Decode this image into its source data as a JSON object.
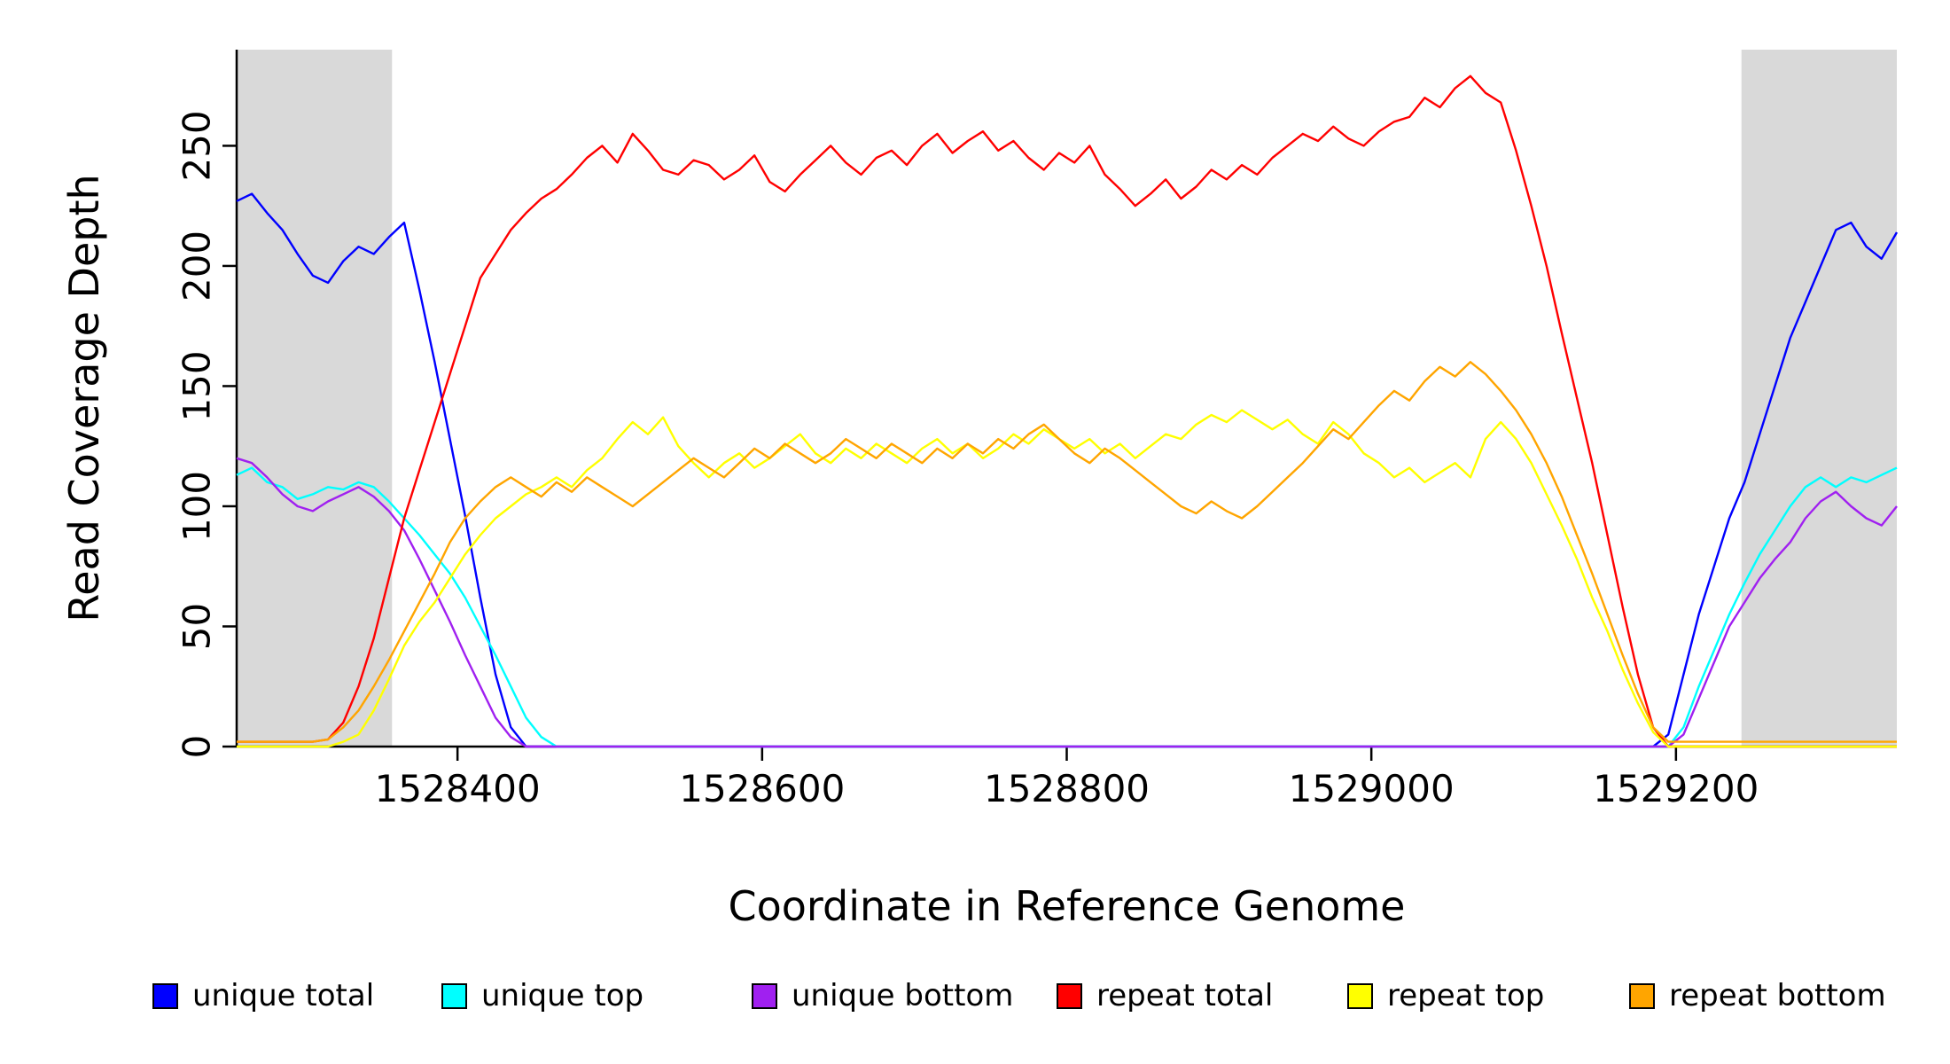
{
  "figure": {
    "background": "#ffffff",
    "x_axis_label": "Coordinate in Reference Genome",
    "y_axis_label": "Read Coverage Depth"
  },
  "chart_data": {
    "type": "line",
    "title": "",
    "xlabel": "Coordinate in Reference Genome",
    "ylabel": "Read Coverage Depth",
    "xlim": [
      1528255,
      1529345
    ],
    "ylim": [
      0,
      290
    ],
    "x_ticks": [
      1528400,
      1528600,
      1528800,
      1529000,
      1529200
    ],
    "y_ticks": [
      0,
      50,
      100,
      150,
      200,
      250
    ],
    "grid": false,
    "legend_position": "bottom",
    "x_start": 1528255,
    "x_step": 10,
    "n_points": 110,
    "shaded_regions": [
      {
        "x0": 1528255,
        "x1": 1528357,
        "color": "#d9d9d9"
      },
      {
        "x0": 1529243,
        "x1": 1529345,
        "color": "#d9d9d9"
      }
    ],
    "series": [
      {
        "label": "unique total",
        "color": "#0000ff",
        "values": [
          227,
          230,
          222,
          215,
          205,
          196,
          193,
          202,
          208,
          205,
          212,
          218,
          190,
          160,
          128,
          96,
          62,
          30,
          8,
          0,
          0,
          0,
          0,
          0,
          0,
          0,
          0,
          0,
          0,
          0,
          0,
          0,
          0,
          0,
          0,
          0,
          0,
          0,
          0,
          0,
          0,
          0,
          0,
          0,
          0,
          0,
          0,
          0,
          0,
          0,
          0,
          0,
          0,
          0,
          0,
          0,
          0,
          0,
          0,
          0,
          0,
          0,
          0,
          0,
          0,
          0,
          0,
          0,
          0,
          0,
          0,
          0,
          0,
          0,
          0,
          0,
          0,
          0,
          0,
          0,
          0,
          0,
          0,
          0,
          0,
          0,
          0,
          0,
          0,
          0,
          0,
          0,
          0,
          0,
          5,
          30,
          55,
          75,
          95,
          110,
          130,
          150,
          170,
          185,
          200,
          215,
          218,
          208,
          203,
          214
        ]
      },
      {
        "label": "unique top",
        "color": "#00ffff",
        "values": [
          113,
          116,
          110,
          108,
          103,
          105,
          108,
          107,
          110,
          108,
          102,
          95,
          88,
          80,
          72,
          62,
          50,
          38,
          25,
          12,
          4,
          0,
          0,
          0,
          0,
          0,
          0,
          0,
          0,
          0,
          0,
          0,
          0,
          0,
          0,
          0,
          0,
          0,
          0,
          0,
          0,
          0,
          0,
          0,
          0,
          0,
          0,
          0,
          0,
          0,
          0,
          0,
          0,
          0,
          0,
          0,
          0,
          0,
          0,
          0,
          0,
          0,
          0,
          0,
          0,
          0,
          0,
          0,
          0,
          0,
          0,
          0,
          0,
          0,
          0,
          0,
          0,
          0,
          0,
          0,
          0,
          0,
          0,
          0,
          0,
          0,
          0,
          0,
          0,
          0,
          0,
          0,
          0,
          0,
          0,
          8,
          25,
          40,
          55,
          68,
          80,
          90,
          100,
          108,
          112,
          108,
          112,
          110,
          113,
          116
        ]
      },
      {
        "label": "unique bottom",
        "color": "#a020f0",
        "values": [
          120,
          118,
          112,
          105,
          100,
          98,
          102,
          105,
          108,
          104,
          98,
          90,
          78,
          65,
          52,
          38,
          25,
          12,
          4,
          0,
          0,
          0,
          0,
          0,
          0,
          0,
          0,
          0,
          0,
          0,
          0,
          0,
          0,
          0,
          0,
          0,
          0,
          0,
          0,
          0,
          0,
          0,
          0,
          0,
          0,
          0,
          0,
          0,
          0,
          0,
          0,
          0,
          0,
          0,
          0,
          0,
          0,
          0,
          0,
          0,
          0,
          0,
          0,
          0,
          0,
          0,
          0,
          0,
          0,
          0,
          0,
          0,
          0,
          0,
          0,
          0,
          0,
          0,
          0,
          0,
          0,
          0,
          0,
          0,
          0,
          0,
          0,
          0,
          0,
          0,
          0,
          0,
          0,
          0,
          0,
          5,
          20,
          35,
          50,
          60,
          70,
          78,
          85,
          95,
          102,
          106,
          100,
          95,
          92,
          100
        ]
      },
      {
        "label": "repeat total",
        "color": "#ff0000",
        "values": [
          2,
          2,
          2,
          2,
          2,
          2,
          3,
          10,
          25,
          45,
          70,
          95,
          115,
          135,
          155,
          175,
          195,
          205,
          215,
          222,
          228,
          232,
          238,
          245,
          250,
          243,
          255,
          248,
          240,
          238,
          244,
          242,
          236,
          240,
          246,
          235,
          231,
          238,
          244,
          250,
          243,
          238,
          245,
          248,
          242,
          250,
          255,
          247,
          252,
          256,
          248,
          252,
          245,
          240,
          247,
          243,
          250,
          238,
          232,
          225,
          230,
          236,
          228,
          233,
          240,
          236,
          242,
          238,
          245,
          250,
          255,
          252,
          258,
          253,
          250,
          256,
          260,
          262,
          270,
          266,
          274,
          279,
          272,
          268,
          248,
          225,
          200,
          172,
          145,
          118,
          88,
          58,
          30,
          8,
          0,
          0,
          0,
          0,
          0,
          0,
          0,
          0,
          0,
          0,
          0,
          0,
          0,
          0,
          0,
          0
        ]
      },
      {
        "label": "repeat top",
        "color": "#ffff00",
        "values": [
          0,
          0,
          0,
          0,
          0,
          0,
          0,
          2,
          5,
          15,
          28,
          42,
          52,
          60,
          70,
          80,
          88,
          95,
          100,
          105,
          108,
          112,
          108,
          115,
          120,
          128,
          135,
          130,
          137,
          125,
          118,
          112,
          118,
          122,
          116,
          120,
          125,
          130,
          122,
          118,
          124,
          120,
          126,
          122,
          118,
          124,
          128,
          122,
          126,
          120,
          124,
          130,
          126,
          132,
          128,
          124,
          128,
          122,
          126,
          120,
          125,
          130,
          128,
          134,
          138,
          135,
          140,
          136,
          132,
          136,
          130,
          126,
          135,
          130,
          122,
          118,
          112,
          116,
          110,
          114,
          118,
          112,
          128,
          135,
          128,
          118,
          105,
          92,
          78,
          62,
          48,
          32,
          18,
          6,
          0,
          0,
          0,
          0,
          0,
          0,
          0,
          0,
          0,
          0,
          0,
          0,
          0,
          0,
          0,
          0
        ]
      },
      {
        "label": "repeat bottom",
        "color": "#ffa500",
        "values": [
          2,
          2,
          2,
          2,
          2,
          2,
          3,
          8,
          15,
          25,
          36,
          48,
          60,
          72,
          85,
          95,
          102,
          108,
          112,
          108,
          104,
          110,
          106,
          112,
          108,
          104,
          100,
          105,
          110,
          115,
          120,
          116,
          112,
          118,
          124,
          120,
          126,
          122,
          118,
          122,
          128,
          124,
          120,
          126,
          122,
          118,
          124,
          120,
          126,
          122,
          128,
          124,
          130,
          134,
          128,
          122,
          118,
          124,
          120,
          115,
          110,
          105,
          100,
          97,
          102,
          98,
          95,
          100,
          106,
          112,
          118,
          125,
          132,
          128,
          135,
          142,
          148,
          144,
          152,
          158,
          154,
          160,
          155,
          148,
          140,
          130,
          118,
          104,
          88,
          72,
          55,
          38,
          22,
          8,
          2,
          2,
          2,
          2,
          2,
          2,
          2,
          2,
          2,
          2,
          2,
          2,
          2,
          2,
          2,
          2
        ]
      }
    ]
  }
}
